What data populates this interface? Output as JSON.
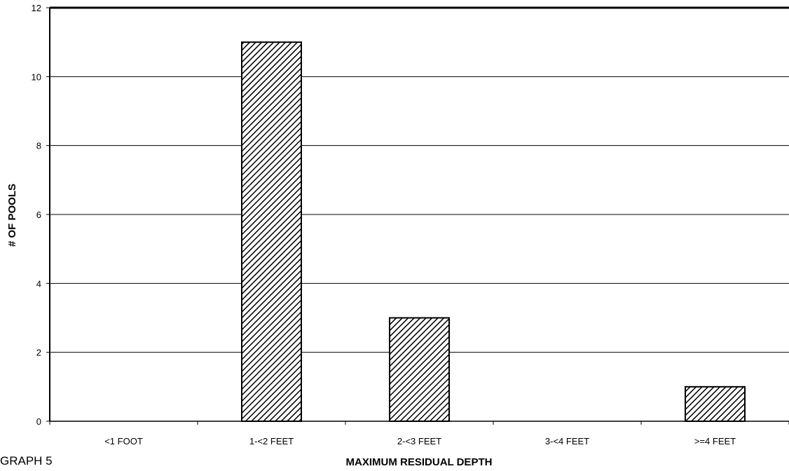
{
  "chart_data": {
    "type": "bar",
    "title": "",
    "xlabel": "MAXIMUM RESIDUAL DEPTH",
    "ylabel": "# OF POOLS",
    "categories": [
      "<1 FOOT",
      "1-<2 FEET",
      "2-<3 FEET",
      "3-<4 FEET",
      ">=4 FEET"
    ],
    "values": [
      0,
      11,
      3,
      0,
      1
    ],
    "ylim": [
      0,
      12
    ],
    "yticks": [
      0,
      2,
      4,
      6,
      8,
      10,
      12
    ],
    "grid": true,
    "bar_fill": "diagonal-hatch"
  },
  "caption": "GRAPH 5"
}
